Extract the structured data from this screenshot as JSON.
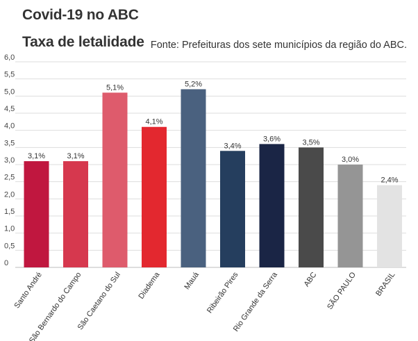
{
  "header": {
    "title": "Covid-19 no ABC",
    "subtitle": "Taxa de letalidade",
    "source": "Fonte: Prefeituras dos sete municípios da região do ABC."
  },
  "chart_data": {
    "type": "bar",
    "title": "Covid-19 no ABC",
    "subtitle": "Taxa de letalidade",
    "xlabel": "",
    "ylabel": "",
    "ylim": [
      0,
      6.0
    ],
    "yticks": [
      "0",
      "0,5",
      "1,0",
      "1,5",
      "2,0",
      "2,5",
      "3,0",
      "3,5",
      "4,0",
      "4,5",
      "5,0",
      "5,5",
      "6,0"
    ],
    "grid": true,
    "categories": [
      "Santo André",
      "São Bernardo do Campo",
      "São Caetano do Sul",
      "Diadema",
      "Mauá",
      "Ribeirão Pires",
      "Rio Grande da Serra",
      "ABC",
      "SÃO PAULO",
      "BRASIL"
    ],
    "values": [
      3.1,
      3.1,
      5.1,
      4.1,
      5.2,
      3.4,
      3.6,
      3.5,
      3.0,
      2.4
    ],
    "value_labels": [
      "3,1%",
      "3,1%",
      "5,1%",
      "4,1%",
      "5,2%",
      "3,4%",
      "3,6%",
      "3,5%",
      "3,0%",
      "2,4%"
    ],
    "colors": [
      "#c0173f",
      "#d6384e",
      "#de5b6c",
      "#e3282f",
      "#4a617f",
      "#253e5e",
      "#1a2545",
      "#4a4a4a",
      "#959595",
      "#e3e3e3"
    ]
  }
}
